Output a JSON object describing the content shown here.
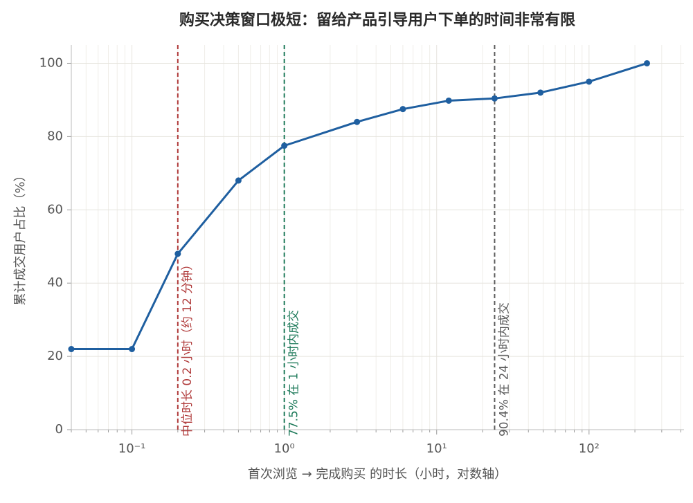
{
  "chart_data": {
    "type": "line",
    "title": "购买决策窗口极短：留给产品引导用户下单的时间非常有限",
    "x_label": "首次浏览 → 完成购买 的时长（小时，对数轴）",
    "y_label": "累计成交用户占比（%）",
    "x": [
      0.04,
      0.1,
      0.2,
      0.5,
      1,
      3,
      6,
      12,
      24,
      48,
      100,
      240
    ],
    "series": [
      {
        "name": "累计成交用户占比",
        "color": "#1f5fa0",
        "values": [
          22,
          22,
          48,
          68,
          77.5,
          84,
          87.5,
          89.8,
          90.4,
          92,
          95,
          100
        ]
      }
    ],
    "xlim": [
      0.04,
      420
    ],
    "ylim": [
      0,
      105
    ],
    "x_scale": "log",
    "xticks": [
      {
        "value": 0.1,
        "label": "10⁻¹"
      },
      {
        "value": 1,
        "label": "10⁰"
      },
      {
        "value": 10,
        "label": "10¹"
      },
      {
        "value": 100,
        "label": "10²"
      }
    ],
    "yticks": [
      0,
      20,
      40,
      60,
      80,
      100
    ],
    "grid": true,
    "reference_lines": [
      {
        "x": 0.2,
        "color": "#b03a3a",
        "label": "中位时长 0.2 小时（约 12 分钟）"
      },
      {
        "x": 1,
        "color": "#1e7a5a",
        "label": "77.5% 在 1 小时内成交"
      },
      {
        "x": 24,
        "color": "#5a5a5a",
        "label": "90.4% 在 24 小时内成交"
      }
    ]
  }
}
